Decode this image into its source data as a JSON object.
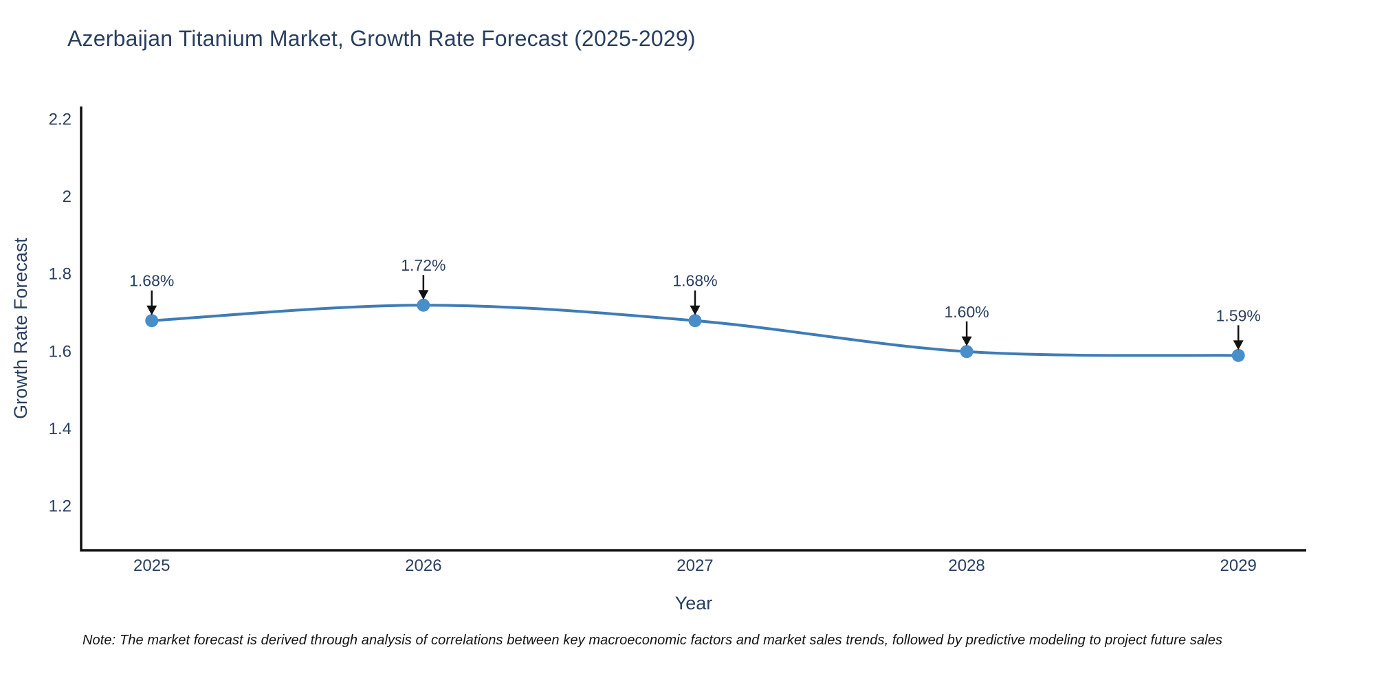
{
  "chart_data": {
    "type": "line",
    "title": "Azerbaijan Titanium Market, Growth Rate Forecast (2025-2029)",
    "xlabel": "Year",
    "ylabel": "Growth Rate Forecast",
    "x": [
      2025,
      2026,
      2027,
      2028,
      2029
    ],
    "y": [
      1.68,
      1.72,
      1.68,
      1.6,
      1.59
    ],
    "point_labels": [
      "1.68%",
      "1.72%",
      "1.68%",
      "1.60%",
      "1.59%"
    ],
    "x_tick_labels": [
      "2025",
      "2026",
      "2027",
      "2028",
      "2029"
    ],
    "y_ticks": [
      1.2,
      1.4,
      1.6,
      1.8,
      2.0,
      2.2
    ],
    "y_tick_labels": [
      "1.2",
      "1.4",
      "1.6",
      "1.8",
      "2",
      "2.2"
    ],
    "x_range": [
      2024.74,
      2029.25
    ],
    "y_range": [
      1.086,
      2.234
    ],
    "line_shape": "spline",
    "grid": false,
    "legend_position": "none",
    "colors": {
      "line": "#3f7cb6",
      "marker": "#4a8ec9",
      "text": "#2a3f5f",
      "spine": "#111111",
      "annotation_arrow": "#111111"
    }
  },
  "note": "Note: The market forecast is derived through analysis of correlations between key macroeconomic factors and market sales trends, followed by predictive modeling to project future sales"
}
